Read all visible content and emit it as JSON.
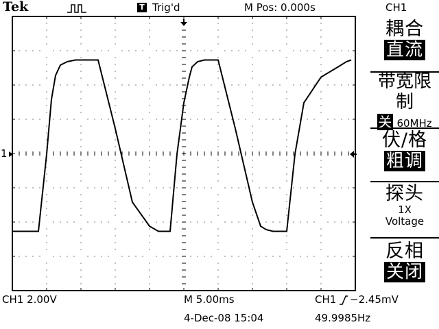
{
  "header": {
    "brand": "Tek",
    "trigger_box": "T",
    "trigger_status": "Trig'd",
    "main_position": "M Pos: 0.000s",
    "channel_title": "CH1"
  },
  "menu": {
    "coupling": {
      "title": "耦合",
      "value": "直流"
    },
    "bandwidth": {
      "title": "带宽限制",
      "value_inv": "关",
      "value_text": "60MHz"
    },
    "volts_div": {
      "title": "伏/格",
      "value": "粗调"
    },
    "probe": {
      "title": "探头",
      "value1": "1X",
      "value2": "Voltage"
    },
    "invert": {
      "title": "反相",
      "value": "关闭"
    }
  },
  "footer": {
    "channel_scale": "CH1  2.00V",
    "timebase": "M 5.00ms",
    "trigger_source": "CH1",
    "trigger_level": "−2.45mV",
    "datetime": "4-Dec-08 15:04",
    "frequency": "49.9985Hz"
  },
  "marker": {
    "ch1": "1"
  },
  "trace": {
    "type": "line",
    "x_unit": "s",
    "y_unit": "V",
    "x": [
      -0.025,
      -0.0233,
      -0.0212,
      -0.02,
      -0.0193,
      -0.0187,
      -0.018,
      -0.017,
      -0.0158,
      -0.015,
      -0.0125,
      -0.01,
      -0.0075,
      -0.005,
      -0.0037,
      -0.003,
      -0.002,
      -0.001,
      0.0,
      0.0008,
      0.0012,
      0.002,
      0.003,
      0.0042,
      0.005,
      0.0075,
      0.01,
      0.0112,
      0.012,
      0.013,
      0.014,
      0.015,
      0.0162,
      0.0175,
      0.02,
      0.0225,
      0.0237,
      0.0244
    ],
    "y": [
      -4.5,
      -4.5,
      -4.5,
      0.0,
      3.2,
      4.6,
      5.2,
      5.4,
      5.5,
      5.5,
      5.5,
      1.5,
      -2.8,
      -4.2,
      -4.5,
      -4.5,
      -4.5,
      0.0,
      3.0,
      4.5,
      5.1,
      5.4,
      5.5,
      5.5,
      5.5,
      1.5,
      -2.8,
      -4.2,
      -4.4,
      -4.5,
      -4.5,
      -4.5,
      0.0,
      3.0,
      4.5,
      5.1,
      5.4,
      5.5
    ]
  }
}
